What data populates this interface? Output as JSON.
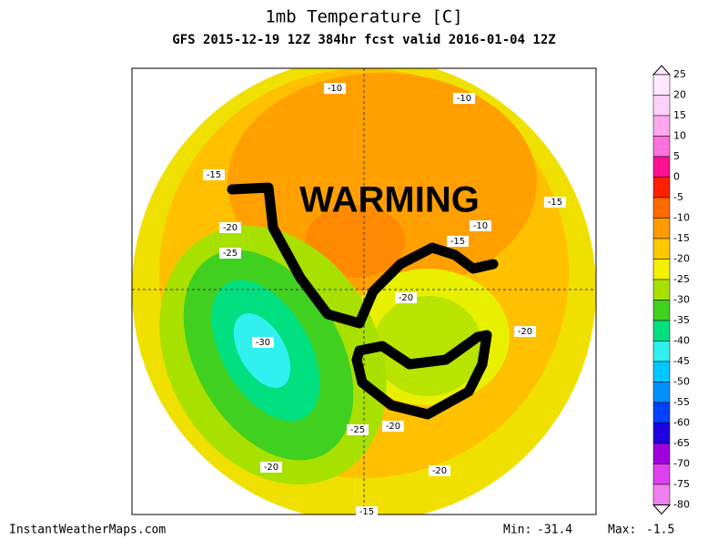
{
  "header": {
    "title": "1mb Temperature [C]",
    "subtitle": "GFS 2015-12-19 12Z 384hr fcst valid 2016-01-04 12Z"
  },
  "annotation": "WARMING",
  "contour_labels": [
    "-10",
    "-10",
    "-15",
    "-15",
    "-10",
    "-15",
    "-20",
    "-25",
    "-20",
    "-30",
    "-20",
    "-25",
    "-20",
    "-20",
    "-20",
    "-15"
  ],
  "colorbar": {
    "labels": [
      "25",
      "20",
      "15",
      "10",
      "5",
      "0",
      "-5",
      "-10",
      "-15",
      "-20",
      "-25",
      "-30",
      "-35",
      "-40",
      "-45",
      "-50",
      "-55",
      "-60",
      "-65",
      "-70",
      "-75",
      "-80"
    ],
    "colors": [
      "#ffe8ff",
      "#ffd0f8",
      "#ffa8f0",
      "#ff70e0",
      "#ff1090",
      "#ff2000",
      "#ff6a00",
      "#ff9a00",
      "#ffc800",
      "#f4f000",
      "#a8e000",
      "#40d020",
      "#00e080",
      "#30f0f0",
      "#00c8ff",
      "#0090ff",
      "#0040ff",
      "#2000e0",
      "#a000e0",
      "#e040f0",
      "#f080f0"
    ]
  },
  "footer": {
    "site": "InstantWeatherMaps.com",
    "min_label": "Min:",
    "min_value": "-31.4",
    "max_label": "Max:",
    "max_value": "-1.5"
  }
}
